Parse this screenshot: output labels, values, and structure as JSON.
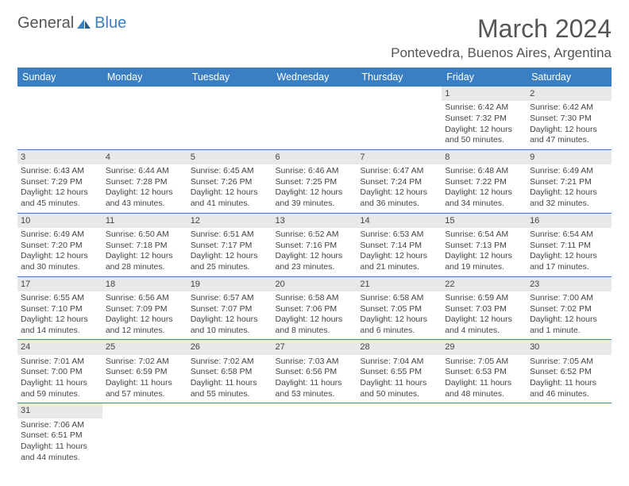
{
  "brand": {
    "general": "General",
    "blue": "Blue"
  },
  "title": "March 2024",
  "location": "Pontevedra, Buenos Aires, Argentina",
  "colors": {
    "header_bg": "#3a7fc4",
    "daynum_bg": "#e8e8e8",
    "row_border": "#3a7fc4",
    "text": "#444444",
    "title": "#555555"
  },
  "typography": {
    "title_fontsize": 32,
    "location_fontsize": 17,
    "header_fontsize": 12.5,
    "cell_fontsize": 10.5
  },
  "weekdays": [
    "Sunday",
    "Monday",
    "Tuesday",
    "Wednesday",
    "Thursday",
    "Friday",
    "Saturday"
  ],
  "grid": [
    [
      {
        "empty": true
      },
      {
        "empty": true
      },
      {
        "empty": true
      },
      {
        "empty": true
      },
      {
        "empty": true
      },
      {
        "day": "1",
        "sunrise": "Sunrise: 6:42 AM",
        "sunset": "Sunset: 7:32 PM",
        "daylight": "Daylight: 12 hours and 50 minutes."
      },
      {
        "day": "2",
        "sunrise": "Sunrise: 6:42 AM",
        "sunset": "Sunset: 7:30 PM",
        "daylight": "Daylight: 12 hours and 47 minutes."
      }
    ],
    [
      {
        "day": "3",
        "sunrise": "Sunrise: 6:43 AM",
        "sunset": "Sunset: 7:29 PM",
        "daylight": "Daylight: 12 hours and 45 minutes."
      },
      {
        "day": "4",
        "sunrise": "Sunrise: 6:44 AM",
        "sunset": "Sunset: 7:28 PM",
        "daylight": "Daylight: 12 hours and 43 minutes."
      },
      {
        "day": "5",
        "sunrise": "Sunrise: 6:45 AM",
        "sunset": "Sunset: 7:26 PM",
        "daylight": "Daylight: 12 hours and 41 minutes."
      },
      {
        "day": "6",
        "sunrise": "Sunrise: 6:46 AM",
        "sunset": "Sunset: 7:25 PM",
        "daylight": "Daylight: 12 hours and 39 minutes."
      },
      {
        "day": "7",
        "sunrise": "Sunrise: 6:47 AM",
        "sunset": "Sunset: 7:24 PM",
        "daylight": "Daylight: 12 hours and 36 minutes."
      },
      {
        "day": "8",
        "sunrise": "Sunrise: 6:48 AM",
        "sunset": "Sunset: 7:22 PM",
        "daylight": "Daylight: 12 hours and 34 minutes."
      },
      {
        "day": "9",
        "sunrise": "Sunrise: 6:49 AM",
        "sunset": "Sunset: 7:21 PM",
        "daylight": "Daylight: 12 hours and 32 minutes."
      }
    ],
    [
      {
        "day": "10",
        "sunrise": "Sunrise: 6:49 AM",
        "sunset": "Sunset: 7:20 PM",
        "daylight": "Daylight: 12 hours and 30 minutes."
      },
      {
        "day": "11",
        "sunrise": "Sunrise: 6:50 AM",
        "sunset": "Sunset: 7:18 PM",
        "daylight": "Daylight: 12 hours and 28 minutes."
      },
      {
        "day": "12",
        "sunrise": "Sunrise: 6:51 AM",
        "sunset": "Sunset: 7:17 PM",
        "daylight": "Daylight: 12 hours and 25 minutes."
      },
      {
        "day": "13",
        "sunrise": "Sunrise: 6:52 AM",
        "sunset": "Sunset: 7:16 PM",
        "daylight": "Daylight: 12 hours and 23 minutes."
      },
      {
        "day": "14",
        "sunrise": "Sunrise: 6:53 AM",
        "sunset": "Sunset: 7:14 PM",
        "daylight": "Daylight: 12 hours and 21 minutes."
      },
      {
        "day": "15",
        "sunrise": "Sunrise: 6:54 AM",
        "sunset": "Sunset: 7:13 PM",
        "daylight": "Daylight: 12 hours and 19 minutes."
      },
      {
        "day": "16",
        "sunrise": "Sunrise: 6:54 AM",
        "sunset": "Sunset: 7:11 PM",
        "daylight": "Daylight: 12 hours and 17 minutes."
      }
    ],
    [
      {
        "day": "17",
        "sunrise": "Sunrise: 6:55 AM",
        "sunset": "Sunset: 7:10 PM",
        "daylight": "Daylight: 12 hours and 14 minutes."
      },
      {
        "day": "18",
        "sunrise": "Sunrise: 6:56 AM",
        "sunset": "Sunset: 7:09 PM",
        "daylight": "Daylight: 12 hours and 12 minutes."
      },
      {
        "day": "19",
        "sunrise": "Sunrise: 6:57 AM",
        "sunset": "Sunset: 7:07 PM",
        "daylight": "Daylight: 12 hours and 10 minutes."
      },
      {
        "day": "20",
        "sunrise": "Sunrise: 6:58 AM",
        "sunset": "Sunset: 7:06 PM",
        "daylight": "Daylight: 12 hours and 8 minutes."
      },
      {
        "day": "21",
        "sunrise": "Sunrise: 6:58 AM",
        "sunset": "Sunset: 7:05 PM",
        "daylight": "Daylight: 12 hours and 6 minutes."
      },
      {
        "day": "22",
        "sunrise": "Sunrise: 6:59 AM",
        "sunset": "Sunset: 7:03 PM",
        "daylight": "Daylight: 12 hours and 4 minutes."
      },
      {
        "day": "23",
        "sunrise": "Sunrise: 7:00 AM",
        "sunset": "Sunset: 7:02 PM",
        "daylight": "Daylight: 12 hours and 1 minute."
      }
    ],
    [
      {
        "day": "24",
        "sunrise": "Sunrise: 7:01 AM",
        "sunset": "Sunset: 7:00 PM",
        "daylight": "Daylight: 11 hours and 59 minutes."
      },
      {
        "day": "25",
        "sunrise": "Sunrise: 7:02 AM",
        "sunset": "Sunset: 6:59 PM",
        "daylight": "Daylight: 11 hours and 57 minutes."
      },
      {
        "day": "26",
        "sunrise": "Sunrise: 7:02 AM",
        "sunset": "Sunset: 6:58 PM",
        "daylight": "Daylight: 11 hours and 55 minutes."
      },
      {
        "day": "27",
        "sunrise": "Sunrise: 7:03 AM",
        "sunset": "Sunset: 6:56 PM",
        "daylight": "Daylight: 11 hours and 53 minutes."
      },
      {
        "day": "28",
        "sunrise": "Sunrise: 7:04 AM",
        "sunset": "Sunset: 6:55 PM",
        "daylight": "Daylight: 11 hours and 50 minutes."
      },
      {
        "day": "29",
        "sunrise": "Sunrise: 7:05 AM",
        "sunset": "Sunset: 6:53 PM",
        "daylight": "Daylight: 11 hours and 48 minutes."
      },
      {
        "day": "30",
        "sunrise": "Sunrise: 7:05 AM",
        "sunset": "Sunset: 6:52 PM",
        "daylight": "Daylight: 11 hours and 46 minutes."
      }
    ],
    [
      {
        "day": "31",
        "sunrise": "Sunrise: 7:06 AM",
        "sunset": "Sunset: 6:51 PM",
        "daylight": "Daylight: 11 hours and 44 minutes."
      },
      {
        "empty": true
      },
      {
        "empty": true
      },
      {
        "empty": true
      },
      {
        "empty": true
      },
      {
        "empty": true
      },
      {
        "empty": true
      }
    ]
  ]
}
